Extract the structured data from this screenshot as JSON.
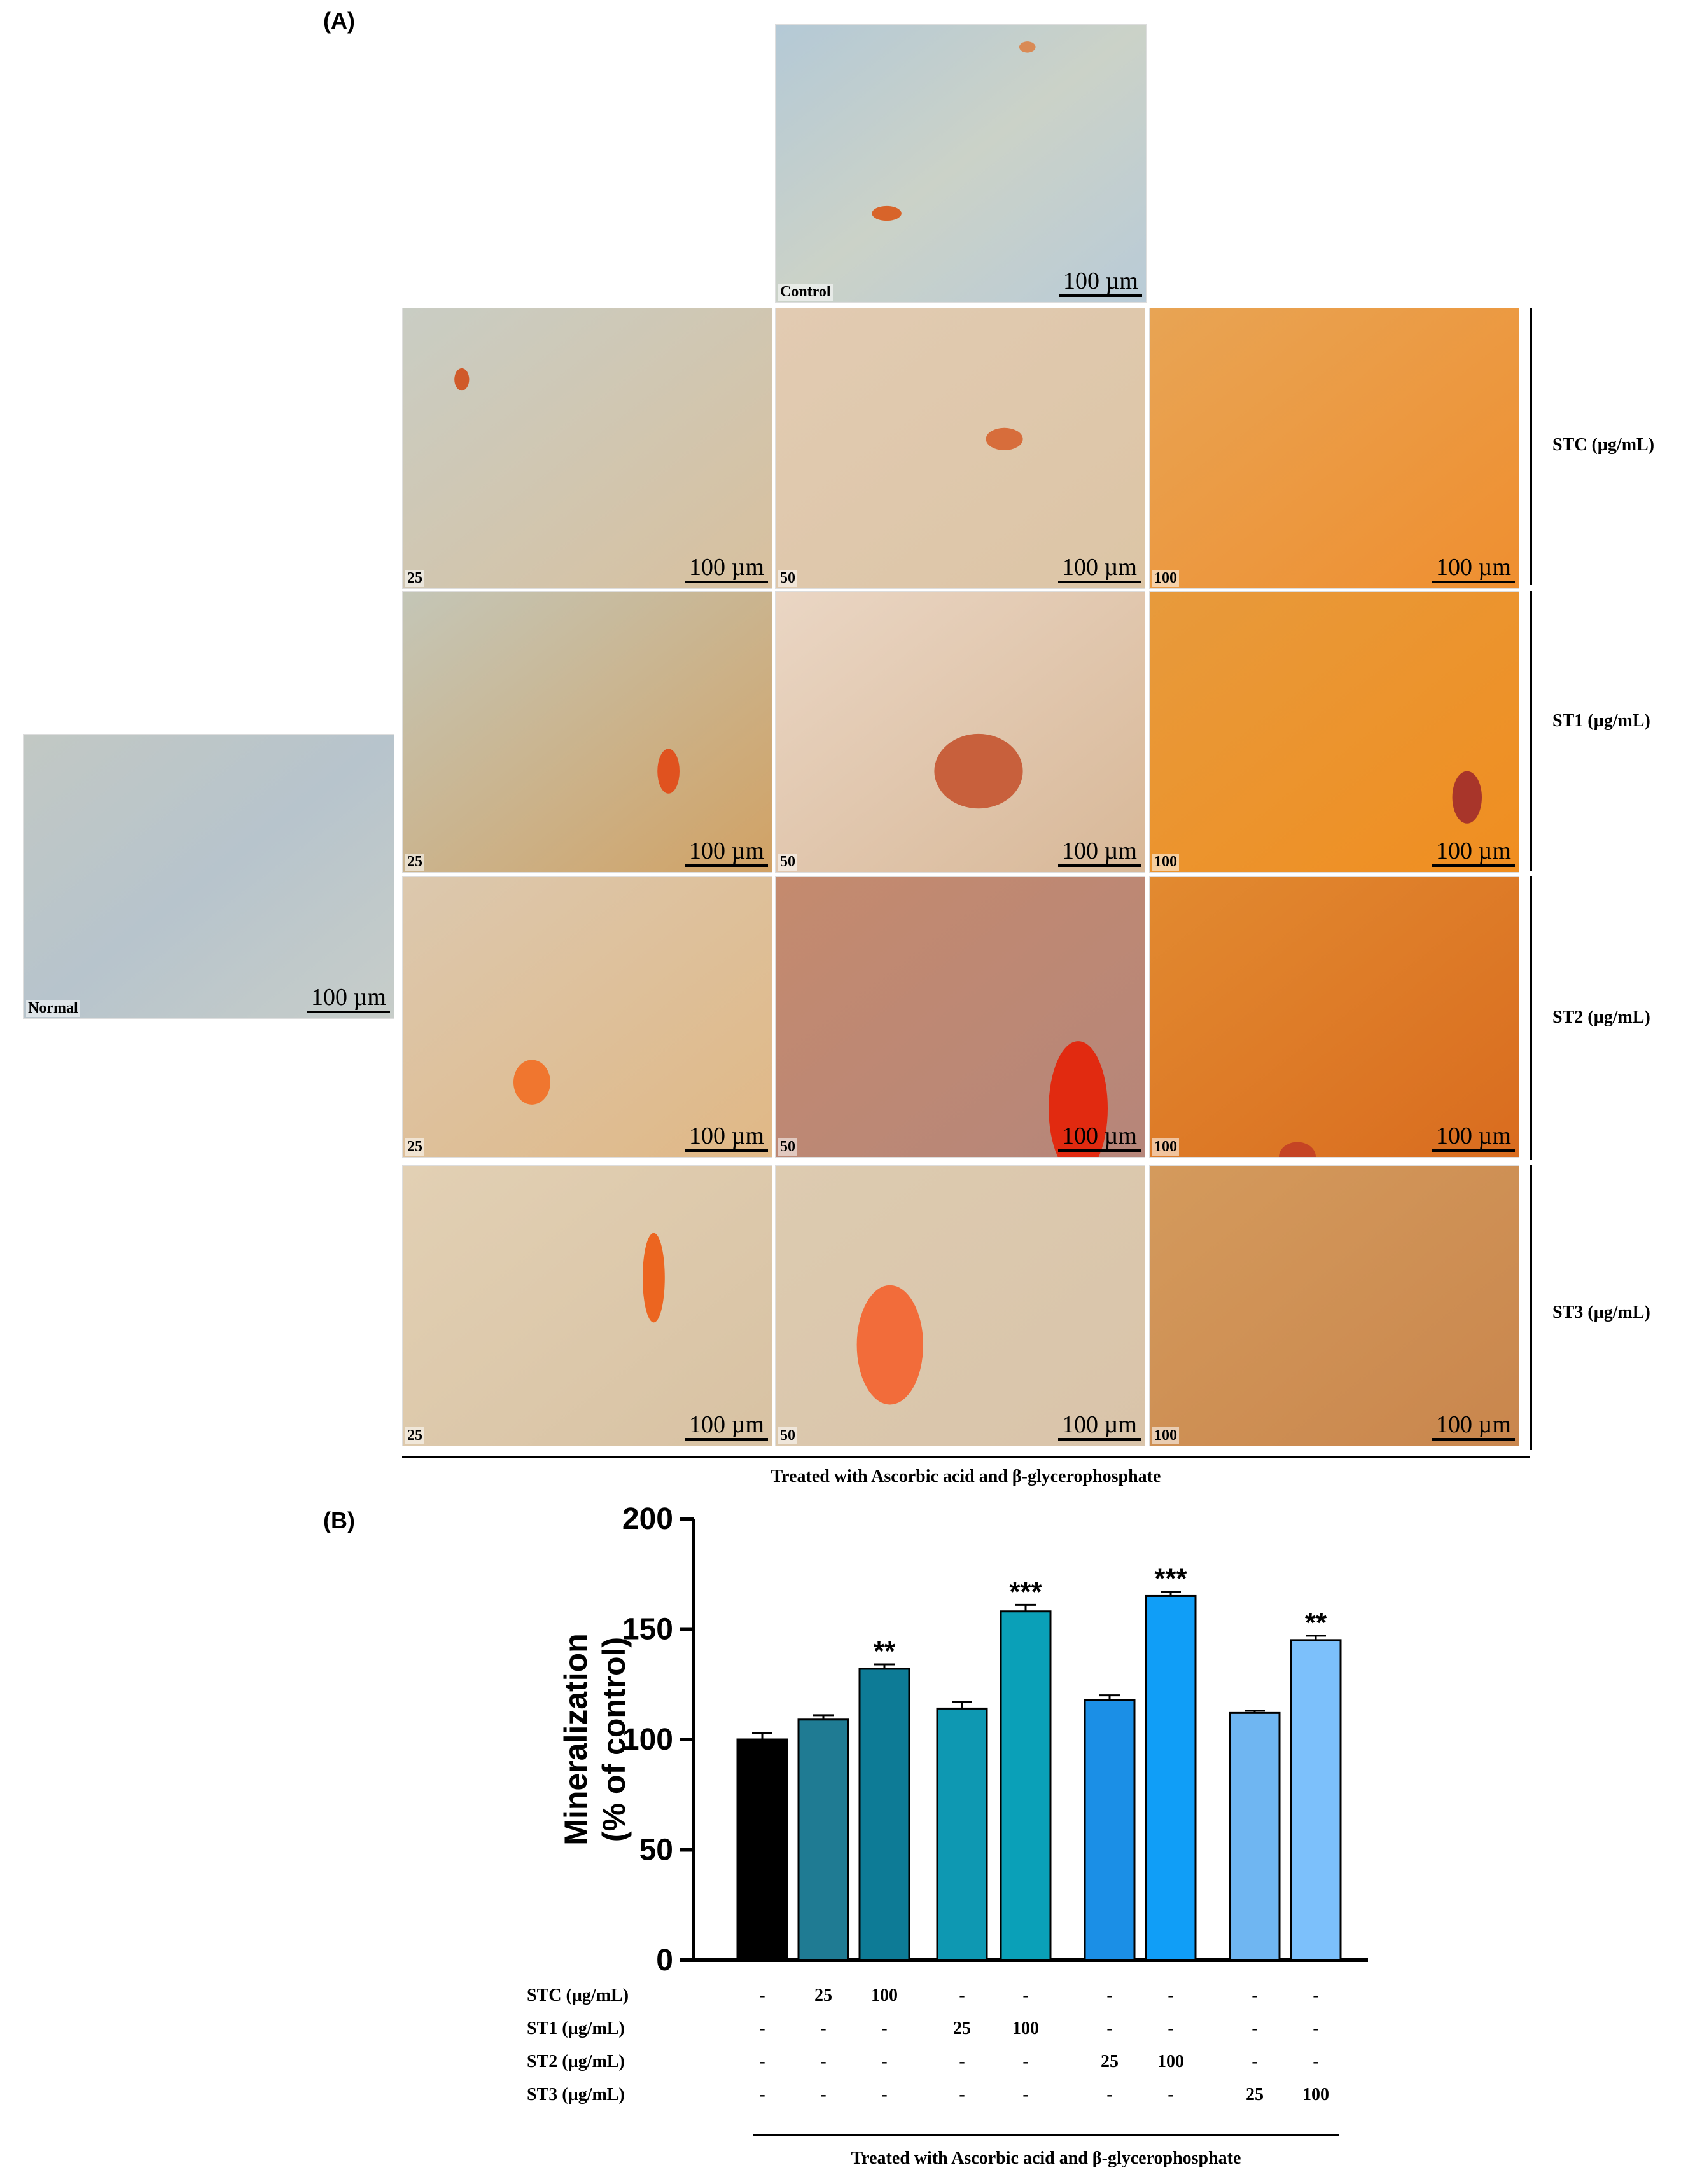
{
  "panel_a": {
    "label": "(A)",
    "scale_bar": "100 µm",
    "control_caption": "Control",
    "normal_caption": "Normal",
    "rows": [
      {
        "label": "STC (µg/mL)",
        "doses": [
          "25",
          "50",
          "100"
        ]
      },
      {
        "label": "ST1 (µg/mL)",
        "doses": [
          "25",
          "50",
          "100"
        ]
      },
      {
        "label": "ST2 (µg/mL)",
        "doses": [
          "25",
          "50",
          "100"
        ]
      },
      {
        "label": "ST3 (µg/mL)",
        "doses": [
          "25",
          "50",
          "100"
        ]
      }
    ],
    "footer": "Treated with Ascorbic acid and β-glycerophosphate"
  },
  "panel_b": {
    "label": "(B)",
    "footer": "Treated with Ascorbic acid and β-glycerophosphate",
    "table": {
      "rows": [
        {
          "label": "STC (µg/mL)",
          "cells": [
            "-",
            "25",
            "100",
            "-",
            "-",
            "-",
            "-",
            "-",
            "-"
          ]
        },
        {
          "label": "ST1 (µg/mL)",
          "cells": [
            "-",
            "-",
            "-",
            "25",
            "100",
            "-",
            "-",
            "-",
            "-"
          ]
        },
        {
          "label": "ST2 (µg/mL)",
          "cells": [
            "-",
            "-",
            "-",
            "-",
            "-",
            "25",
            "100",
            "-",
            "-"
          ]
        },
        {
          "label": "ST3 (µg/mL)",
          "cells": [
            "-",
            "-",
            "-",
            "-",
            "-",
            "-",
            "-",
            "25",
            "100"
          ]
        }
      ]
    }
  },
  "chart_data": {
    "type": "bar",
    "ylabel_line1": "Mineralization",
    "ylabel_line2": "(% of control)",
    "ylim": [
      0,
      200
    ],
    "yticks": [
      "0",
      "50",
      "100",
      "150",
      "200"
    ],
    "values": [
      100,
      109,
      132,
      114,
      158,
      118,
      165,
      112,
      145
    ],
    "errors": [
      3,
      2,
      2,
      3,
      3,
      2,
      2,
      1,
      2
    ],
    "significance": [
      "",
      "",
      "**",
      "",
      "***",
      "",
      "***",
      "",
      "**"
    ],
    "colors": [
      "#000000",
      "#1f7b93",
      "#0d7b96",
      "#0e98b2",
      "#0aa0b8",
      "#1b8fe6",
      "#109ef7",
      "#6fb6f2",
      "#7cc0fb"
    ]
  }
}
